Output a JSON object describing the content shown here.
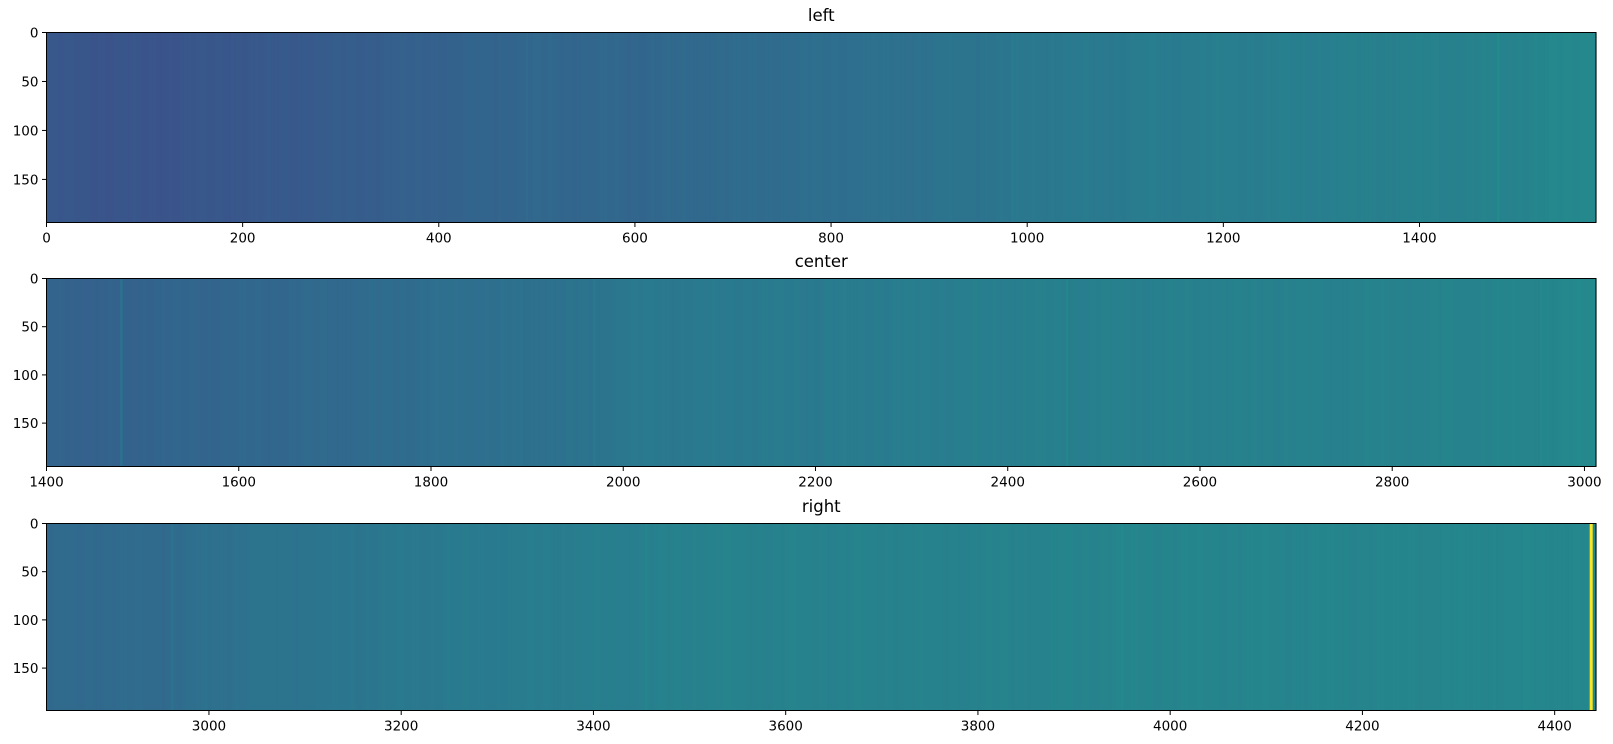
{
  "chart_data": [
    {
      "type": "heatmap",
      "title": "left",
      "colormap": "viridis",
      "xlim": [
        0,
        1580
      ],
      "ylim": [
        194,
        0
      ],
      "xticks": [
        "0",
        "200",
        "400",
        "600",
        "800",
        "1000",
        "1200",
        "1400"
      ],
      "xtick_values": [
        0,
        200,
        400,
        600,
        800,
        1000,
        1200,
        1400
      ],
      "yticks": [
        "0",
        "50",
        "100",
        "150"
      ],
      "ytick_values": [
        0,
        50,
        100,
        150
      ],
      "column_profile": {
        "x": [
          0,
          100,
          250,
          400,
          490,
          600,
          800,
          980,
          1000,
          1200,
          1480,
          1580
        ],
        "level": [
          0.27,
          0.26,
          0.28,
          0.31,
          0.33,
          0.33,
          0.36,
          0.39,
          0.4,
          0.42,
          0.44,
          0.47
        ]
      },
      "stripes": [
        {
          "x": 490,
          "level": 0.35
        },
        {
          "x": 985,
          "level": 0.42
        },
        {
          "x": 1480,
          "level": 0.49
        }
      ]
    },
    {
      "type": "heatmap",
      "title": "center",
      "colormap": "viridis",
      "xlim": [
        1400,
        3012
      ],
      "ylim": [
        195,
        0
      ],
      "xticks": [
        "1400",
        "1600",
        "1800",
        "2000",
        "2200",
        "2400",
        "2600",
        "2800",
        "3000"
      ],
      "xtick_values": [
        1400,
        1600,
        1800,
        2000,
        2200,
        2400,
        2600,
        2800,
        3000
      ],
      "yticks": [
        "0",
        "50",
        "100",
        "150"
      ],
      "ytick_values": [
        0,
        50,
        100,
        150
      ],
      "column_profile": {
        "x": [
          1400,
          1478,
          1500,
          1700,
          1800,
          1970,
          2000,
          2200,
          2460,
          2500,
          2800,
          2950,
          3012
        ],
        "level": [
          0.32,
          0.31,
          0.32,
          0.34,
          0.36,
          0.38,
          0.4,
          0.41,
          0.43,
          0.43,
          0.44,
          0.45,
          0.47
        ]
      },
      "stripes": [
        {
          "x": 1478,
          "level": 0.4
        },
        {
          "x": 1970,
          "level": 0.42
        },
        {
          "x": 2462,
          "level": 0.46
        },
        {
          "x": 2955,
          "level": 0.48
        }
      ]
    },
    {
      "type": "heatmap",
      "title": "right",
      "colormap": "viridis",
      "xlim": [
        2831,
        4443
      ],
      "ylim": [
        194,
        0
      ],
      "xticks": [
        "3000",
        "3200",
        "3400",
        "3600",
        "3800",
        "4000",
        "4200",
        "4400"
      ],
      "xtick_values": [
        3000,
        3200,
        3400,
        3600,
        3800,
        4000,
        4200,
        4400
      ],
      "yticks": [
        "0",
        "50",
        "100",
        "150"
      ],
      "ytick_values": [
        0,
        50,
        100,
        150
      ],
      "column_profile": {
        "x": [
          2831,
          2960,
          3000,
          3200,
          3455,
          3500,
          3800,
          3950,
          4000,
          4200,
          4436
        ],
        "level": [
          0.34,
          0.35,
          0.37,
          0.4,
          0.43,
          0.44,
          0.44,
          0.45,
          0.45,
          0.45,
          0.46
        ]
      },
      "stripes": [
        {
          "x": 2962,
          "level": 0.39
        },
        {
          "x": 3455,
          "level": 0.46
        },
        {
          "x": 3950,
          "level": 0.47
        },
        {
          "x": 4438,
          "level": 1.0
        }
      ],
      "missing_after": 4440
    }
  ]
}
